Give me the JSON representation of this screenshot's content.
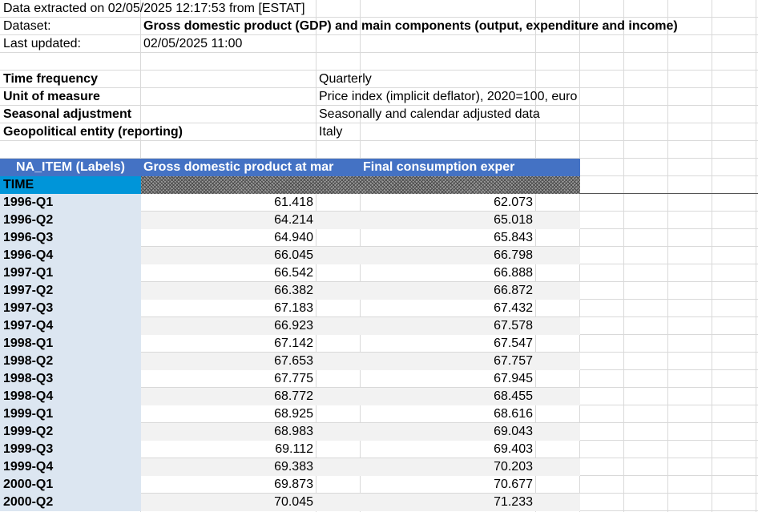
{
  "meta": {
    "extracted": "Data extracted on 02/05/2025 12:17:53 from [ESTAT]",
    "dataset_label": "Dataset:",
    "dataset_value": "Gross domestic product (GDP) and main components (output, expenditure and income)",
    "updated_label": "Last updated:",
    "updated_value": "02/05/2025 11:00"
  },
  "params": [
    {
      "label": "Time frequency",
      "value": "Quarterly"
    },
    {
      "label": "Unit of measure",
      "value": "Price index (implicit deflator), 2020=100, euro"
    },
    {
      "label": "Seasonal adjustment",
      "value": "Seasonally and calendar adjusted data"
    },
    {
      "label": "Geopolitical entity (reporting)",
      "value": "Italy"
    }
  ],
  "table": {
    "item_header": "NA_ITEM (Labels)",
    "col1_header": "Gross domestic product at mar",
    "col2_header": "Final consumption exper",
    "time_header": "TIME",
    "rows": [
      {
        "time": "1996-Q1",
        "gdp": "61.418",
        "fce": "62.073"
      },
      {
        "time": "1996-Q2",
        "gdp": "64.214",
        "fce": "65.018"
      },
      {
        "time": "1996-Q3",
        "gdp": "64.940",
        "fce": "65.843"
      },
      {
        "time": "1996-Q4",
        "gdp": "66.045",
        "fce": "66.798"
      },
      {
        "time": "1997-Q1",
        "gdp": "66.542",
        "fce": "66.888"
      },
      {
        "time": "1997-Q2",
        "gdp": "66.382",
        "fce": "66.872"
      },
      {
        "time": "1997-Q3",
        "gdp": "67.183",
        "fce": "67.432"
      },
      {
        "time": "1997-Q4",
        "gdp": "66.923",
        "fce": "67.578"
      },
      {
        "time": "1998-Q1",
        "gdp": "67.142",
        "fce": "67.547"
      },
      {
        "time": "1998-Q2",
        "gdp": "67.653",
        "fce": "67.757"
      },
      {
        "time": "1998-Q3",
        "gdp": "67.775",
        "fce": "67.945"
      },
      {
        "time": "1998-Q4",
        "gdp": "68.772",
        "fce": "68.455"
      },
      {
        "time": "1999-Q1",
        "gdp": "68.925",
        "fce": "68.616"
      },
      {
        "time": "1999-Q2",
        "gdp": "68.983",
        "fce": "69.043"
      },
      {
        "time": "1999-Q3",
        "gdp": "69.112",
        "fce": "69.403"
      },
      {
        "time": "1999-Q4",
        "gdp": "69.383",
        "fce": "70.203"
      },
      {
        "time": "2000-Q1",
        "gdp": "69.873",
        "fce": "70.677"
      },
      {
        "time": "2000-Q2",
        "gdp": "70.045",
        "fce": "71.233"
      }
    ]
  },
  "colors": {
    "header_bg": "#4472c4",
    "time_bg": "#0095d9",
    "rowlabel_bg": "#dce6f1",
    "band_bg": "#f2f2f2"
  }
}
